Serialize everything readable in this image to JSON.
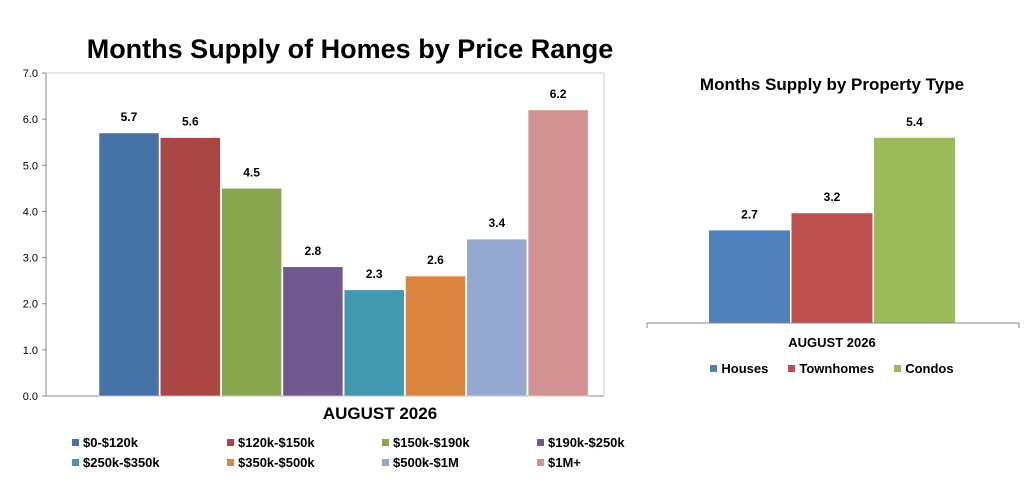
{
  "chart_data": [
    {
      "type": "bar",
      "title": "Months Supply of Homes by Price Range",
      "xlabel": "AUGUST 2026",
      "ylabel": "",
      "ylim": [
        0,
        7
      ],
      "yticks": [
        "0.0",
        "1.0",
        "2.0",
        "3.0",
        "4.0",
        "5.0",
        "6.0",
        "7.0"
      ],
      "grid": false,
      "legend_position": "bottom",
      "categories": [
        "$0-$120k",
        "$120k-$150k",
        "$150k-$190k",
        "$190k-$250k",
        "$250k-$350k",
        "$350k-$500k",
        "$500k-$1M",
        "$1M+"
      ],
      "values": [
        5.7,
        5.6,
        4.5,
        2.8,
        2.3,
        2.6,
        3.4,
        6.2
      ],
      "labels": [
        "5.7",
        "5.6",
        "4.5",
        "2.8",
        "2.3",
        "2.6",
        "3.4",
        "6.2"
      ],
      "colors": [
        "#4572A7",
        "#AA4643",
        "#89A54E",
        "#71588F",
        "#4198AF",
        "#DB843D",
        "#93A9CF",
        "#D19392"
      ]
    },
    {
      "type": "bar",
      "title": "Months Supply by Property Type",
      "xlabel": "AUGUST 2026",
      "ylabel": "",
      "ylim": [
        0,
        6
      ],
      "grid": false,
      "legend_position": "bottom",
      "categories": [
        "Houses",
        "Townhomes",
        "Condos"
      ],
      "values": [
        2.7,
        3.2,
        5.4
      ],
      "labels": [
        "2.7",
        "3.2",
        "5.4"
      ],
      "colors": [
        "#4F81BD",
        "#C0504D",
        "#9BBB59"
      ]
    }
  ]
}
